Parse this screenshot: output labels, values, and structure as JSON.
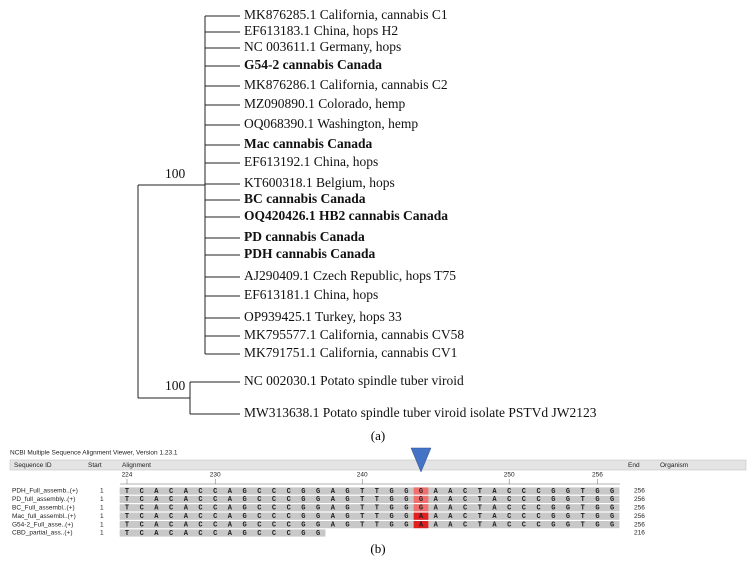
{
  "tree": {
    "leaves": [
      {
        "label": "MK876285.1 California, cannabis C1",
        "bold": false
      },
      {
        "label": "EF613183.1 China, hops H2",
        "bold": false
      },
      {
        "label": "NC 003611.1 Germany, hops",
        "bold": false
      },
      {
        "label": "G54-2 cannabis Canada",
        "bold": true
      },
      {
        "label": "MK876286.1 California, cannabis C2",
        "bold": false
      },
      {
        "label": "MZ090890.1 Colorado, hemp",
        "bold": false
      },
      {
        "label": "OQ068390.1 Washington, hemp",
        "bold": false
      },
      {
        "label": "Mac cannabis Canada",
        "bold": true
      },
      {
        "label": "EF613192.1 China, hops",
        "bold": false
      },
      {
        "label": "KT600318.1 Belgium, hops",
        "bold": false
      },
      {
        "label": "BC cannabis Canada",
        "bold": true
      },
      {
        "label": "OQ420426.1 HB2 cannabis Canada",
        "bold": true
      },
      {
        "label": "PD cannabis Canada",
        "bold": true
      },
      {
        "label": "PDH cannabis Canada",
        "bold": true
      },
      {
        "label": "AJ290409.1 Czech Republic, hops T75",
        "bold": false
      },
      {
        "label": "EF613181.1 China, hops",
        "bold": false
      },
      {
        "label": "OP939425.1 Turkey, hops 33",
        "bold": false
      },
      {
        "label": "MK795577.1 California, cannabis CV58",
        "bold": false
      },
      {
        "label": "MK791751.1 California, cannabis CV1",
        "bold": false
      }
    ],
    "bootstrap": "100",
    "outgroup": {
      "bootstrap": "100",
      "leaves": [
        {
          "label": "NC 002030.1 Potato spindle tuber viroid",
          "bold": false
        },
        {
          "label": "MW313638.1 Potato spindle tuber viroid isolate PSTVd JW2123",
          "bold": false
        }
      ]
    },
    "caption": "(a)"
  },
  "alignment": {
    "title": "NCBI Multiple Sequence Alignment Viewer, Version 1.23.1",
    "headers": [
      "Sequence ID",
      "Start",
      "Alignment",
      "End",
      "Organism"
    ],
    "ruler": [
      224,
      230,
      240,
      250,
      256
    ],
    "rows": [
      {
        "id": "PDH_Full_assemb..(+)",
        "start": "1",
        "sequence": "TCACACCAGCCCGGAGTTGGGAACTACCCGGTGG",
        "end": "256"
      },
      {
        "id": "PD_full_assembly..(+)",
        "start": "1",
        "sequence": "TCACACCAGCCCGGAGTTGGGAACTACCCGGTGG",
        "end": "256"
      },
      {
        "id": "BC_Full_assembl..(+)",
        "start": "1",
        "sequence": "TCACACCAGCCCGGAGTTGGGAACTACCCGGTGG",
        "end": "256"
      },
      {
        "id": "Mac_full_assembl..(+)",
        "start": "1",
        "sequence": "TCACACCAGCCCGGAGTTGGAAACTACCCGGTGG",
        "end": "256"
      },
      {
        "id": "G54-2_Full_asse..(+)",
        "start": "1",
        "sequence": "TCACACCAGCCCGGAGTTGGAAACTACCCGGTGG",
        "end": "256"
      },
      {
        "id": "CBD_partial_ass..(+)",
        "start": "1",
        "sequence": "TCACACCAGCCCGG",
        "end": "216"
      }
    ],
    "caption": "(b)"
  }
}
